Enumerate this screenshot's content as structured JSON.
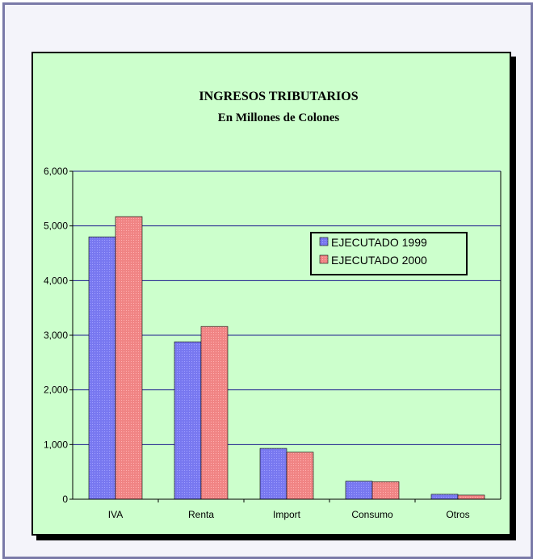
{
  "chart_data": {
    "type": "bar",
    "title": "INGRESOS TRIBUTARIOS",
    "subtitle": "En Millones de Colones",
    "categories": [
      "IVA",
      "Renta",
      "Import",
      "Consumo",
      "Otros"
    ],
    "series": [
      {
        "name": "EJECUTADO 1999",
        "values": [
          4800,
          2880,
          930,
          330,
          90
        ],
        "color": "#7878f0"
      },
      {
        "name": "EJECUTADO 2000",
        "values": [
          5170,
          3160,
          860,
          320,
          75
        ],
        "color": "#f08484"
      }
    ],
    "y_ticks": [
      "0",
      "1,000",
      "2,000",
      "3,000",
      "4,000",
      "5,000",
      "6,000"
    ],
    "ylim": [
      0,
      6000
    ],
    "grid": true,
    "legend_position": "right",
    "colors": {
      "background": "#ccffcc",
      "gridline": "#1a1a8c",
      "frame": "#7a7aa8"
    }
  }
}
